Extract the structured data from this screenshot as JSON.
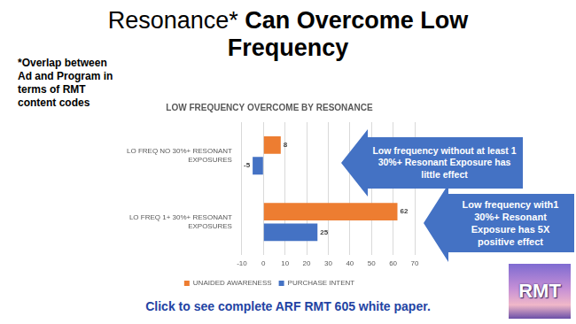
{
  "title": {
    "lead": "Resonance*",
    "rest": "Can Overcome Low Frequency"
  },
  "footnote": "*Overlap between Ad and Program in terms of RMT content codes",
  "callouts": [
    "Low frequency without at least 1 30%+ Resonant Exposure has little effect",
    "Low frequency with1 30%+ Resonant Exposure has 5X positive effect"
  ],
  "link": "Click to see complete ARF RMT 605 white paper.",
  "logo": "RMT",
  "chart_data": {
    "type": "bar",
    "orientation": "horizontal",
    "title": "LOW FREQUENCY OVERCOME BY RESONANCE",
    "categories": [
      "LO FREQ NO 30%+ RESONANT EXPOSURES",
      "LO FREQ 1+ 30%+ RESONANT EXPOSURES"
    ],
    "series": [
      {
        "name": "UNAIDED AWARENESS",
        "color": "#ed7d31",
        "values": [
          8,
          62
        ]
      },
      {
        "name": "PURCHASE INTENT",
        "color": "#4472c4",
        "values": [
          -5,
          25
        ]
      }
    ],
    "xlim": [
      -10,
      70
    ],
    "xticks": [
      -10,
      0,
      10,
      20,
      30,
      40,
      50,
      60,
      70
    ],
    "grid": true,
    "legend": "bottom",
    "data_labels": true
  }
}
